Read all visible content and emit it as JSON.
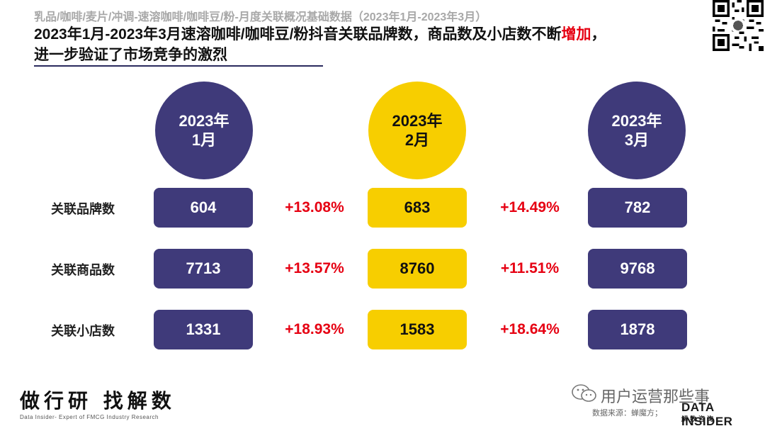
{
  "subtitle": "乳品/咖啡/麦片/冲调-速溶咖啡/咖啡豆/粉-月度关联概况基础数据（2023年1月-2023年3月）",
  "headline": {
    "part1": "2023年1月-2023年3月速溶咖啡/咖啡豆/粉抖音关联品牌数，商品数及小店数不断",
    "highlight": "增加",
    "part2": "，",
    "line2": "进一步验证了市场竞争的激烈"
  },
  "months": [
    {
      "year": "2023年",
      "month": "1月",
      "color": "purple"
    },
    {
      "year": "2023年",
      "month": "2月",
      "color": "yellow"
    },
    {
      "year": "2023年",
      "month": "3月",
      "color": "purple"
    }
  ],
  "rows": [
    {
      "label": "关联品牌数",
      "values": [
        "604",
        "683",
        "782"
      ],
      "changes": [
        "+13.08%",
        "+14.49%"
      ]
    },
    {
      "label": "关联商品数",
      "values": [
        "7713",
        "8760",
        "9768"
      ],
      "changes": [
        "+13.57%",
        "+11.51%"
      ]
    },
    {
      "label": "关联小店数",
      "values": [
        "1331",
        "1583",
        "1878"
      ],
      "changes": [
        "+18.93%",
        "+18.64%"
      ]
    }
  ],
  "colors": {
    "purple": "#3f3a7a",
    "yellow": "#f7ce00",
    "increase_red": "#e60012"
  },
  "footer": {
    "brand": "做行研 找解数",
    "brand_sub": "Data Insider- Expert of FMCG Industry Research",
    "wechat_account": "用户运营那些事",
    "source": "数据来源：蝉魔方；",
    "logo": "DATA INSIDER",
    "logo_sub": "解数咨询"
  },
  "icons": {
    "qr": "qr-code-icon",
    "wechat": "wechat-icon"
  }
}
